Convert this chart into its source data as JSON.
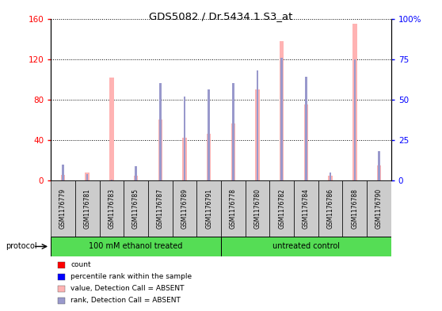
{
  "title": "GDS5082 / Dr.5434.1.S3_at",
  "samples": [
    "GSM1176779",
    "GSM1176781",
    "GSM1176783",
    "GSM1176785",
    "GSM1176787",
    "GSM1176789",
    "GSM1176791",
    "GSM1176778",
    "GSM1176780",
    "GSM1176782",
    "GSM1176784",
    "GSM1176786",
    "GSM1176788",
    "GSM1176790"
  ],
  "values_absent": [
    5.5,
    8.0,
    102.0,
    5.0,
    60.0,
    42.0,
    46.0,
    56.0,
    90.0,
    138.0,
    75.0,
    5.0,
    155.0,
    15.0
  ],
  "ranks_absent": [
    10.0,
    4.0,
    0.5,
    9.0,
    60.0,
    52.0,
    56.0,
    60.0,
    68.0,
    76.0,
    64.0,
    5.0,
    75.0,
    18.0
  ],
  "group1_label": "100 mM ethanol treated",
  "group2_label": "untreated control",
  "group1_count": 7,
  "group2_count": 7,
  "left_ylim": [
    0,
    160
  ],
  "right_ylim": [
    0,
    100
  ],
  "left_yticks": [
    0,
    40,
    80,
    120,
    160
  ],
  "right_yticks": [
    0,
    25,
    50,
    75,
    100
  ],
  "left_color": "#ff0000",
  "right_color": "#0000ff",
  "bar_color_absent": "#ffb3b3",
  "rank_color_absent": "#9999cc",
  "group_bg_color": "#55dd55",
  "sample_box_color": "#cccccc",
  "protocol_label": "protocol",
  "legend_items": [
    {
      "label": "count",
      "color": "#ff0000"
    },
    {
      "label": "percentile rank within the sample",
      "color": "#0000ff"
    },
    {
      "label": "value, Detection Call = ABSENT",
      "color": "#ffb3b3"
    },
    {
      "label": "rank, Detection Call = ABSENT",
      "color": "#9999cc"
    }
  ]
}
